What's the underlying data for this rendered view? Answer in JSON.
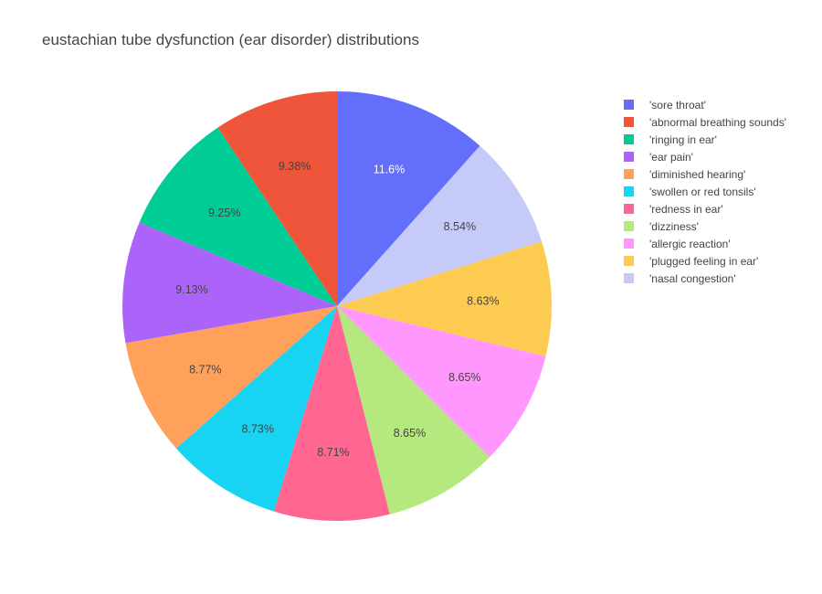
{
  "chart_data": {
    "type": "pie",
    "title": "eustachian tube dysfunction (ear disorder) distributions",
    "slices": [
      {
        "name": "'sore throat'",
        "value": 11.6,
        "label": "11.6%",
        "color": "#636efa",
        "label_color": "#ffffff"
      },
      {
        "name": "'nasal congestion'",
        "value": 8.54,
        "label": "8.54%",
        "color": "#c6caf9",
        "label_color": "#444444"
      },
      {
        "name": "'plugged feeling in ear'",
        "value": 8.63,
        "label": "8.63%",
        "color": "#fecb52",
        "label_color": "#444444"
      },
      {
        "name": "'allergic reaction'",
        "value": 8.65,
        "label": "8.65%",
        "color": "#ff97ff",
        "label_color": "#444444"
      },
      {
        "name": "'dizziness'",
        "value": 8.65,
        "label": "8.65%",
        "color": "#b6e880",
        "label_color": "#444444"
      },
      {
        "name": "'redness in ear'",
        "value": 8.71,
        "label": "8.71%",
        "color": "#ff6692",
        "label_color": "#444444"
      },
      {
        "name": "'swollen or red tonsils'",
        "value": 8.73,
        "label": "8.73%",
        "color": "#19d3f3",
        "label_color": "#444444"
      },
      {
        "name": "'diminished hearing'",
        "value": 8.77,
        "label": "8.77%",
        "color": "#ffa15a",
        "label_color": "#444444"
      },
      {
        "name": "'ear pain'",
        "value": 9.13,
        "label": "9.13%",
        "color": "#ab63fa",
        "label_color": "#444444"
      },
      {
        "name": "'ringing in ear'",
        "value": 9.25,
        "label": "9.25%",
        "color": "#00cc96",
        "label_color": "#444444"
      },
      {
        "name": "'abnormal breathing sounds'",
        "value": 9.38,
        "label": "9.38%",
        "color": "#ef553b",
        "label_color": "#444444"
      }
    ],
    "legend": {
      "placement": "right",
      "items": [
        {
          "name": "'sore throat'",
          "color": "#636efa"
        },
        {
          "name": "'abnormal breathing sounds'",
          "color": "#ef553b"
        },
        {
          "name": "'ringing in ear'",
          "color": "#00cc96"
        },
        {
          "name": "'ear pain'",
          "color": "#ab63fa"
        },
        {
          "name": "'diminished hearing'",
          "color": "#ffa15a"
        },
        {
          "name": "'swollen or red tonsils'",
          "color": "#19d3f3"
        },
        {
          "name": "'redness in ear'",
          "color": "#ff6692"
        },
        {
          "name": "'dizziness'",
          "color": "#b6e880"
        },
        {
          "name": "'allergic reaction'",
          "color": "#ff97ff"
        },
        {
          "name": "'plugged feeling in ear'",
          "color": "#fecb52"
        },
        {
          "name": "'nasal congestion'",
          "color": "#c6caf9"
        }
      ]
    }
  }
}
